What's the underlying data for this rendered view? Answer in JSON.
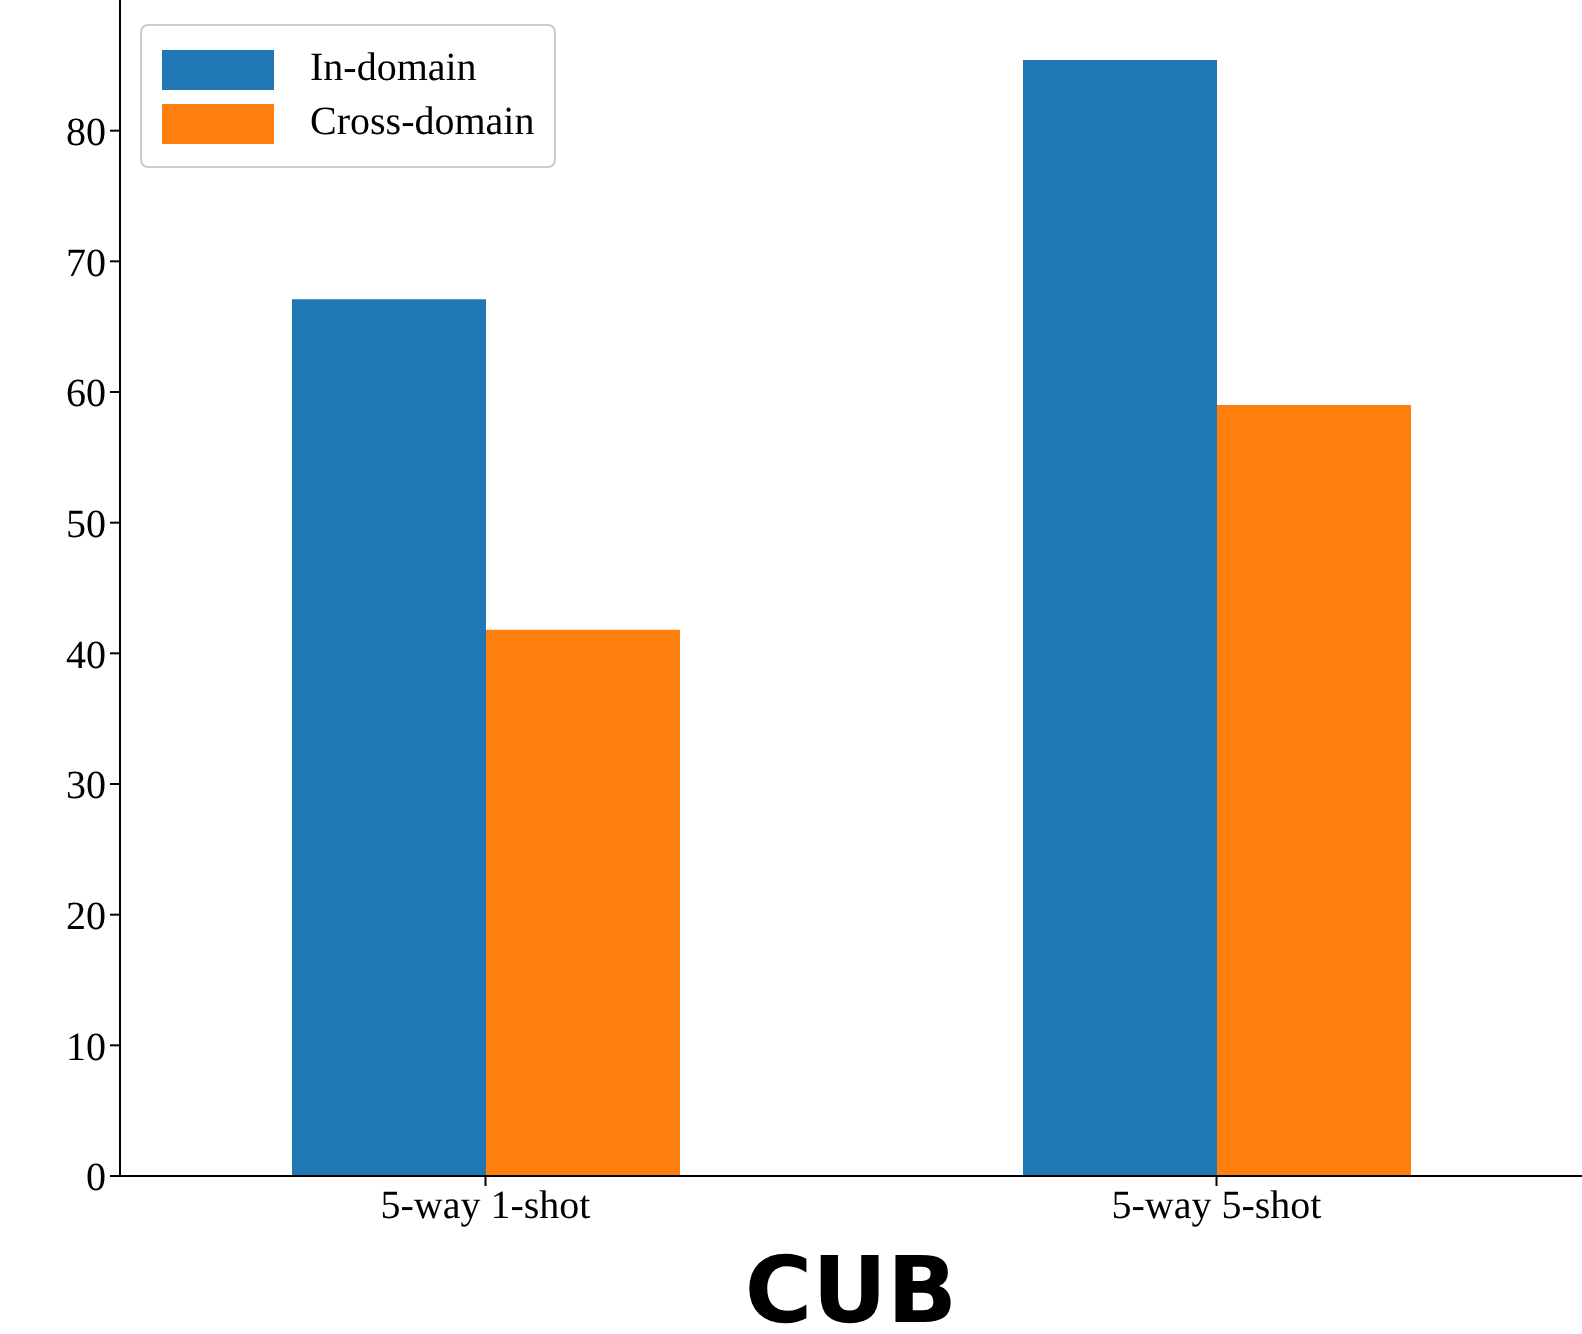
{
  "chart_data": {
    "type": "bar",
    "xlabel": "CUB",
    "categories": [
      "5-way 1-shot",
      "5-way 5-shot"
    ],
    "series": [
      {
        "name": "In-domain",
        "color": "#1f77b4",
        "values": [
          67.1,
          85.4
        ]
      },
      {
        "name": "Cross-domain",
        "color": "#ff7f0e",
        "values": [
          41.8,
          59.0
        ]
      }
    ],
    "ylim": [
      0,
      90
    ],
    "yticks": [
      0,
      10,
      20,
      30,
      40,
      50,
      60,
      70,
      80
    ],
    "legend": "top left",
    "grid": false
  }
}
